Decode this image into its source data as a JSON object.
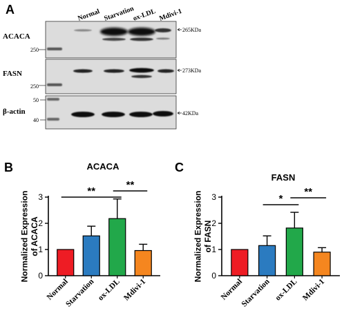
{
  "panel_a": {
    "letter": "A",
    "lanes": [
      "Normal",
      "Starvation",
      "ox-LDL",
      "Mdivi-1"
    ],
    "blots": [
      {
        "protein": "ACACA",
        "size": "265KDa",
        "ladder": [
          "250"
        ]
      },
      {
        "protein": "FASN",
        "size": "273KDa",
        "ladder": [
          "250"
        ]
      },
      {
        "protein": "β-actin",
        "size": "42KDa",
        "ladder": [
          "50",
          "40"
        ]
      }
    ]
  },
  "panel_b": {
    "letter": "B"
  },
  "panel_c": {
    "letter": "C"
  },
  "chart_data": [
    {
      "type": "bar",
      "title": "ACACA",
      "ylabel": "Normalized Expression of ACACA",
      "categories": [
        "Normal",
        "Starvation",
        "ox-LDL",
        "Mdivi-1"
      ],
      "values": [
        1.0,
        1.52,
        2.18,
        0.96
      ],
      "errors": [
        0,
        0.37,
        0.75,
        0.24
      ],
      "colors": [
        "#ee1c24",
        "#2b7bc0",
        "#22a84a",
        "#f5861f"
      ],
      "ylim": [
        0,
        3
      ],
      "yticks": [
        "0",
        "1",
        "2",
        "3"
      ],
      "significance": [
        {
          "from": 0,
          "to": 2,
          "label": "**"
        },
        {
          "from": 2,
          "to": 3,
          "label": "**"
        }
      ]
    },
    {
      "type": "bar",
      "title": "FASN",
      "ylabel": "Normalized Expression of FASN",
      "categories": [
        "Normal",
        "Starvation",
        "ox-LDL",
        "Mdivi-1"
      ],
      "values": [
        1.0,
        1.15,
        1.82,
        0.9
      ],
      "errors": [
        0,
        0.37,
        0.6,
        0.17
      ],
      "colors": [
        "#ee1c24",
        "#2b7bc0",
        "#22a84a",
        "#f5861f"
      ],
      "ylim": [
        0,
        3
      ],
      "yticks": [
        "0",
        "1",
        "2",
        "3"
      ],
      "significance": [
        {
          "from": 1,
          "to": 2,
          "label": "*"
        },
        {
          "from": 2,
          "to": 3,
          "label": "**"
        }
      ]
    }
  ]
}
